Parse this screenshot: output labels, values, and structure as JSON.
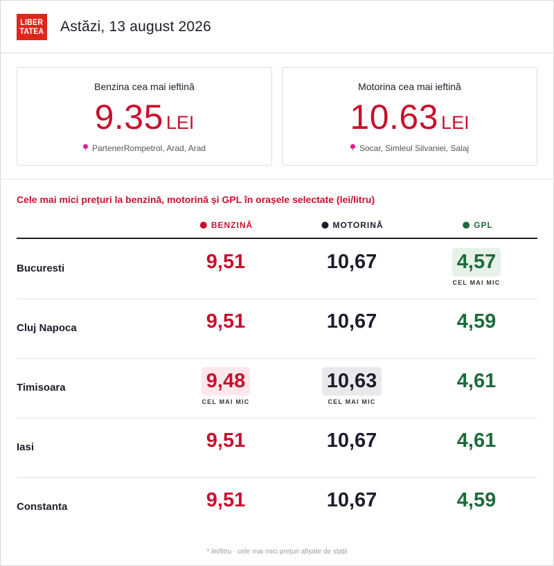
{
  "header": {
    "logo_line1": "LIBER",
    "logo_line2": "TATEA",
    "date": "Astăzi, 13 august 2026"
  },
  "cards": [
    {
      "title": "Benzina cea mai ieftină",
      "price": "9.35",
      "unit": "LEI",
      "location": "PartenerRompetrol, Arad, Arad"
    },
    {
      "title": "Motorina cea mai ieftină",
      "price": "10.63",
      "unit": "LEI",
      "location": "Socar, Simleul Silvaniei, Salaj"
    }
  ],
  "section_title": "Cele mai mici prețuri la benzină, motorină și GPL în orașele selectate (lei/litru)",
  "table": {
    "headers": {
      "benzina": "BENZINĂ",
      "motorina": "MOTORINĂ",
      "gpl": "GPL"
    },
    "badge_text": "CEL MAI MIC",
    "rows": [
      {
        "city": "Bucuresti",
        "benzina": "9,51",
        "motorina": "10,67",
        "gpl": "4,57"
      },
      {
        "city": "Cluj Napoca",
        "benzina": "9,51",
        "motorina": "10,67",
        "gpl": "4,59"
      },
      {
        "city": "Timisoara",
        "benzina": "9,48",
        "motorina": "10,63",
        "gpl": "4,61"
      },
      {
        "city": "Iasi",
        "benzina": "9,51",
        "motorina": "10,67",
        "gpl": "4,61"
      },
      {
        "city": "Constanta",
        "benzina": "9,51",
        "motorina": "10,67",
        "gpl": "4,59"
      }
    ]
  },
  "footnote": "* lei/litru · cele mai mici prețuri afișate de stații",
  "colors": {
    "brand_red": "#e0261b",
    "benzina": "#c8102e",
    "motorina": "#1c1c2b",
    "gpl": "#1d6b3a",
    "location_pin": "#e0198c"
  },
  "icons": {
    "location": "map-pin-icon",
    "legend_dot": "dot-icon"
  }
}
